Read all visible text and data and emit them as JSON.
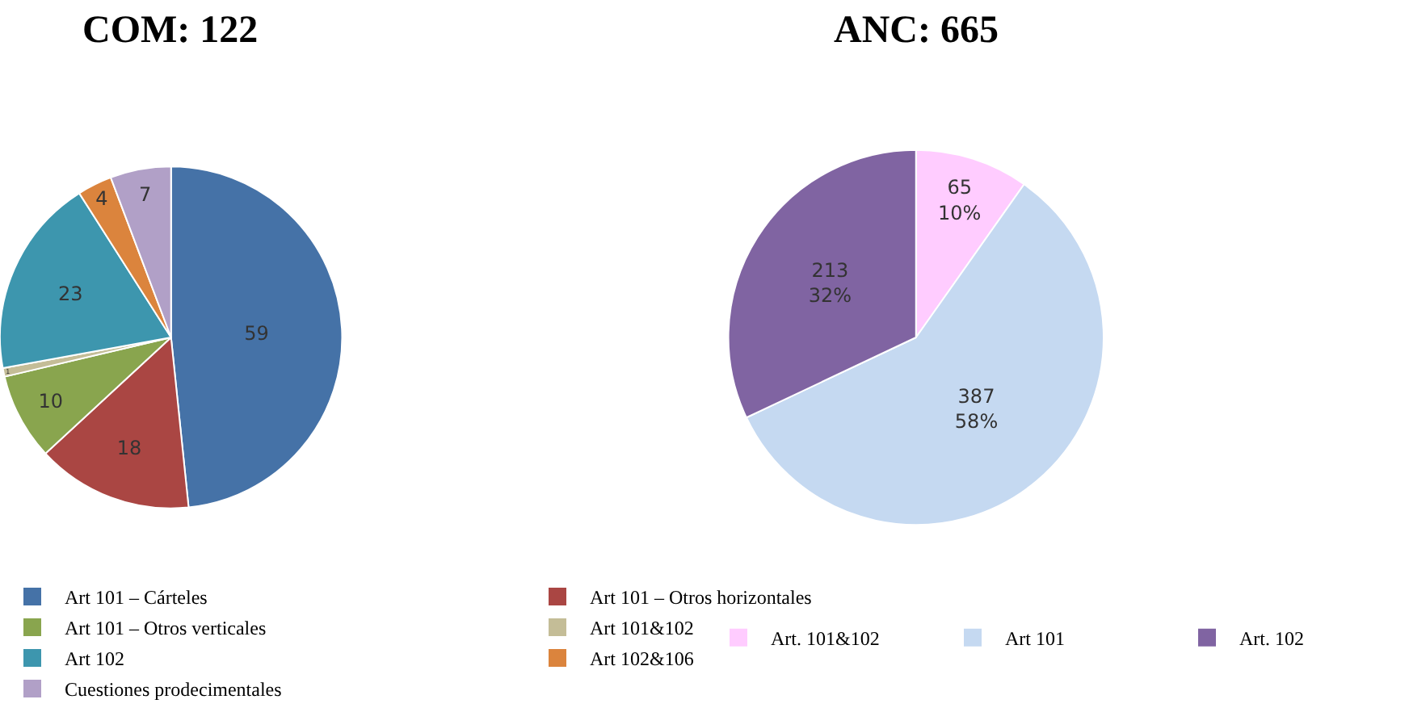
{
  "chart_data": [
    {
      "type": "pie",
      "title": "COM: 122",
      "categories": [
        "Art 101 – Cárteles",
        "Art 101 – Otros horizontales",
        "Art 101 – Otros verticales",
        "Art 101&102",
        "Art 102",
        "Art 102&106",
        "Cuestiones prodecimentales"
      ],
      "values": [
        59,
        18,
        10,
        1,
        23,
        4,
        7
      ],
      "colors": [
        "#4572a7",
        "#aa4643",
        "#89a54e",
        "#c4bd97",
        "#3d96ae",
        "#db843d",
        "#b1a0c7"
      ],
      "data_labels": true,
      "legend": "bottom"
    },
    {
      "type": "pie",
      "title": "ANC: 665",
      "categories": [
        "Art. 101&102",
        "Art 101",
        "Art. 102"
      ],
      "values": [
        65,
        387,
        213
      ],
      "colors": [
        "#ffccff",
        "#c5d9f1",
        "#8064a2"
      ],
      "value_labels": [
        "65\n10%",
        "387\n58%",
        "213\n32%"
      ],
      "legend": "bottom"
    }
  ]
}
